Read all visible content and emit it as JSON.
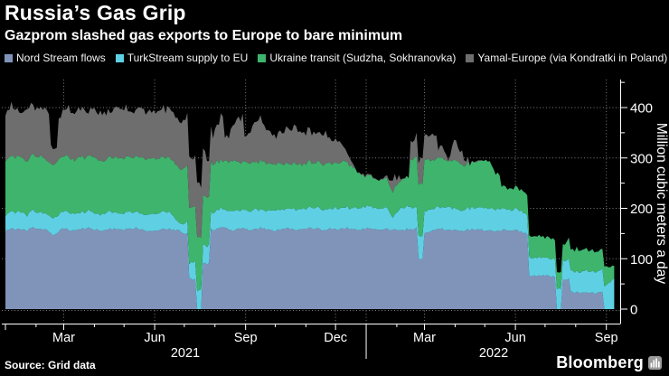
{
  "header": {
    "title": "Russia’s Gas Grip",
    "subtitle": "Gazprom slashed gas exports to Europe to bare minimum"
  },
  "legend": [
    {
      "label": "Nord Stream flows",
      "color": "#8094ba"
    },
    {
      "label": "TurkStream supply to EU",
      "color": "#5fd0e4"
    },
    {
      "label": "Ukraine transit (Sudzha, Sokhranovka)",
      "color": "#3fb46d"
    },
    {
      "label": "Yamal-Europe (via Kondratki in Poland)",
      "color": "#6e6e6e"
    }
  ],
  "footer": {
    "source": "Source: Grid data",
    "brand": "Bloomberg"
  },
  "colors": {
    "background": "#000000",
    "text": "#ffffff",
    "axis": "#ffffff",
    "grid": "#8a8a8a",
    "logo_block": "#9a9a9a"
  },
  "chart_data": {
    "type": "area",
    "stacked": true,
    "title": "Russia’s Gas Grip",
    "ylabel": "Million cubic meters a day",
    "xlabel": "",
    "ylim": [
      0,
      455
    ],
    "y_ticks": [
      0,
      100,
      200,
      300,
      400
    ],
    "y_minor_ticks": [
      50,
      150,
      250,
      350,
      450
    ],
    "grid": "dotted",
    "legend_position": "top",
    "x_unit": "days since 2021-01-01",
    "x_day_span": [
      0,
      622
    ],
    "sample_interval_days": 7,
    "x_ticks": [
      {
        "day": 0,
        "label": ""
      },
      {
        "day": 59,
        "label": "Mar"
      },
      {
        "day": 151,
        "label": "Jun"
      },
      {
        "day": 243,
        "label": "Sep"
      },
      {
        "day": 334,
        "label": "Dec"
      },
      {
        "day": 424,
        "label": "Mar"
      },
      {
        "day": 516,
        "label": "Jun"
      },
      {
        "day": 608,
        "label": "Sep"
      }
    ],
    "x_minor_tick_days": [
      31,
      90,
      120,
      181,
      212,
      273,
      304,
      396,
      455,
      485,
      546,
      577
    ],
    "year_separator_day": 365,
    "year_labels": [
      {
        "label": "2021",
        "center_day": 182
      },
      {
        "label": "2022",
        "center_day": 494
      }
    ],
    "series": [
      {
        "name": "Nord Stream flows",
        "key": "nord-stream",
        "color": "#8094ba",
        "jitter": 2.5,
        "values": [
          156,
          160,
          158,
          155,
          161,
          159,
          157,
          144,
          160,
          158,
          156,
          159,
          161,
          157,
          155,
          160,
          158,
          156,
          159,
          161,
          158,
          155,
          157,
          160,
          158,
          156,
          150,
          60,
          0,
          90,
          158,
          161,
          159,
          156,
          160,
          157,
          159,
          161,
          158,
          156,
          159,
          160,
          157,
          158,
          160,
          159,
          157,
          160,
          158,
          161,
          159,
          157,
          160,
          158,
          156,
          159,
          157,
          155,
          158,
          160,
          100,
          150,
          157,
          159,
          156,
          158,
          155,
          157,
          159,
          156,
          158,
          155,
          157,
          154,
          156,
          150,
          67,
          67,
          66,
          65,
          0,
          60,
          33,
          33,
          32,
          33,
          32,
          0,
          0
        ]
      },
      {
        "name": "TurkStream supply to EU",
        "key": "turkstream",
        "color": "#5fd0e4",
        "jitter": 2,
        "values": [
          32,
          34,
          33,
          31,
          35,
          33,
          32,
          34,
          33,
          35,
          32,
          33,
          34,
          32,
          33,
          35,
          33,
          32,
          34,
          33,
          31,
          34,
          33,
          35,
          33,
          14,
          20,
          36,
          38,
          36,
          35,
          37,
          36,
          38,
          36,
          37,
          39,
          37,
          38,
          40,
          38,
          39,
          41,
          39,
          40,
          42,
          40,
          41,
          43,
          41,
          42,
          43,
          42,
          44,
          42,
          45,
          25,
          43,
          44,
          42,
          45,
          43,
          44,
          42,
          45,
          43,
          41,
          44,
          42,
          45,
          43,
          44,
          42,
          40,
          43,
          41,
          36,
          36,
          35,
          36,
          40,
          38,
          42,
          41,
          43,
          42,
          44,
          48,
          60
        ]
      },
      {
        "name": "Ukraine transit (Sudzha, Sokhranovka)",
        "key": "ukraine-transit",
        "color": "#3fb46d",
        "jitter": 3,
        "values": [
          110,
          108,
          112,
          107,
          109,
          111,
          108,
          106,
          110,
          109,
          107,
          111,
          108,
          110,
          106,
          109,
          108,
          110,
          107,
          109,
          111,
          108,
          110,
          107,
          109,
          108,
          110,
          109,
          107,
          96,
          98,
          95,
          97,
          99,
          96,
          98,
          95,
          97,
          96,
          90,
          92,
          88,
          91,
          87,
          90,
          88,
          91,
          89,
          90,
          92,
          85,
          70,
          60,
          60,
          55,
          58,
          52,
          55,
          58,
          95,
          105,
          100,
          95,
          98,
          92,
          95,
          90,
          88,
          92,
          95,
          93,
          70,
          44,
          42,
          43,
          41,
          42,
          41,
          40,
          42,
          33,
          35,
          45,
          44,
          43,
          42,
          40,
          35,
          25
        ]
      },
      {
        "name": "Yamal-Europe (via Kondratki in Poland)",
        "key": "yamal-europe",
        "color": "#6e6e6e",
        "jitter": 7,
        "values": [
          95,
          102,
          88,
          98,
          96,
          90,
          100,
          35,
          85,
          99,
          92,
          97,
          88,
          93,
          97,
          90,
          95,
          100,
          92,
          96,
          98,
          91,
          95,
          97,
          93,
          90,
          95,
          100,
          102,
          80,
          60,
          85,
          45,
          70,
          90,
          55,
          75,
          85,
          65,
          55,
          65,
          75,
          70,
          60,
          65,
          55,
          60,
          50,
          45,
          30,
          8,
          4,
          2,
          2,
          0,
          3,
          28,
          5,
          0,
          30,
          55,
          45,
          50,
          20,
          5,
          35,
          25,
          0,
          2,
          0,
          0,
          0,
          0,
          0,
          0,
          0,
          0,
          0,
          0,
          0,
          0,
          0,
          0,
          0,
          0,
          0,
          0,
          0,
          0
        ]
      }
    ]
  }
}
